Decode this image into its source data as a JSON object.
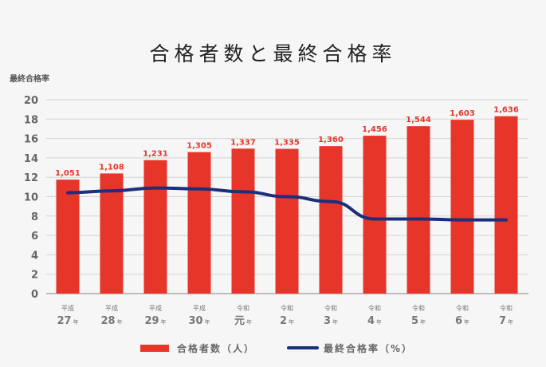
{
  "chart_data": {
    "type": "bar+line",
    "title": "合格者数と最終合格率",
    "ylabel": "最終合格率",
    "ylim": [
      0,
      20
    ],
    "yticks": [
      0,
      2,
      4,
      6,
      8,
      10,
      12,
      14,
      16,
      18,
      20
    ],
    "grid": true,
    "categories": [
      {
        "era": "平成",
        "year": "27",
        "unit": "年"
      },
      {
        "era": "平成",
        "year": "28",
        "unit": "年"
      },
      {
        "era": "平成",
        "year": "29",
        "unit": "年"
      },
      {
        "era": "平成",
        "year": "30",
        "unit": "年"
      },
      {
        "era": "令和",
        "year": "元",
        "unit": "年"
      },
      {
        "era": "令和",
        "year": "2",
        "unit": "年"
      },
      {
        "era": "令和",
        "year": "3",
        "unit": "年"
      },
      {
        "era": "令和",
        "year": "4",
        "unit": "年"
      },
      {
        "era": "令和",
        "year": "5",
        "unit": "年"
      },
      {
        "era": "令和",
        "year": "6",
        "unit": "年"
      },
      {
        "era": "令和",
        "year": "7",
        "unit": "年"
      }
    ],
    "series": [
      {
        "name": "合格者数（人）",
        "type": "bar",
        "color": "#e8352a",
        "values": [
          1051,
          1108,
          1231,
          1305,
          1337,
          1335,
          1360,
          1456,
          1544,
          1603,
          1636
        ],
        "labels": [
          "1,051",
          "1,108",
          "1,231",
          "1,305",
          "1,337",
          "1,335",
          "1,360",
          "1,456",
          "1,544",
          "1,603",
          "1,636"
        ]
      },
      {
        "name": "最終合格率（%）",
        "type": "line",
        "color": "#1b2f7a",
        "values": [
          10.4,
          10.6,
          10.9,
          10.8,
          10.5,
          10.0,
          9.5,
          7.7,
          7.7,
          7.6,
          7.6
        ]
      }
    ],
    "legend_position": "bottom"
  }
}
